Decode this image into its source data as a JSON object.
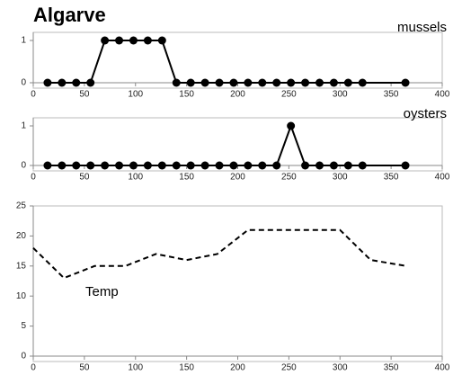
{
  "chart_data": [
    {
      "type": "line",
      "title": "Algarve",
      "x": [
        14,
        28,
        42,
        56,
        70,
        84,
        98,
        112,
        126,
        140,
        154,
        168,
        182,
        196,
        210,
        224,
        238,
        252,
        266,
        280,
        294,
        308,
        322,
        364
      ],
      "series": [
        {
          "name": "mussels",
          "color": "#000000",
          "marker": true,
          "linestyle": "solid",
          "values": [
            0,
            0,
            0,
            0,
            1,
            1,
            1,
            1,
            1,
            0,
            0,
            0,
            0,
            0,
            0,
            0,
            0,
            0,
            0,
            0,
            0,
            0,
            0,
            0
          ]
        }
      ],
      "xlim": [
        0,
        400
      ],
      "xticks": [
        0,
        50,
        100,
        150,
        200,
        250,
        300,
        350,
        400
      ],
      "ylim": [
        0,
        1
      ],
      "yticks": [
        0,
        1
      ]
    },
    {
      "type": "line",
      "x": [
        14,
        28,
        42,
        56,
        70,
        84,
        98,
        112,
        126,
        140,
        154,
        168,
        182,
        196,
        210,
        224,
        238,
        252,
        266,
        280,
        294,
        308,
        322,
        364
      ],
      "series": [
        {
          "name": "oysters",
          "color": "#000000",
          "marker": true,
          "linestyle": "solid",
          "values": [
            0,
            0,
            0,
            0,
            0,
            0,
            0,
            0,
            0,
            0,
            0,
            0,
            0,
            0,
            0,
            0,
            0,
            1,
            0,
            0,
            0,
            0,
            0,
            0
          ]
        }
      ],
      "xlim": [
        0,
        400
      ],
      "xticks": [
        0,
        50,
        100,
        150,
        200,
        250,
        300,
        350,
        400
      ],
      "ylim": [
        0,
        1
      ],
      "yticks": [
        0,
        1
      ]
    },
    {
      "type": "line",
      "x": [
        0,
        30,
        60,
        90,
        120,
        150,
        180,
        210,
        240,
        270,
        300,
        330,
        365
      ],
      "series": [
        {
          "name": "Temp",
          "color": "#000000",
          "marker": false,
          "linestyle": "dashed",
          "values": [
            18,
            13,
            15,
            15,
            17,
            16,
            17,
            21,
            21,
            21,
            21,
            16,
            15
          ]
        }
      ],
      "xlim": [
        0,
        400
      ],
      "xticks": [
        0,
        50,
        100,
        150,
        200,
        250,
        300,
        350,
        400
      ],
      "ylim": [
        0,
        25
      ],
      "yticks": [
        0,
        5,
        10,
        15,
        20,
        25
      ]
    }
  ]
}
